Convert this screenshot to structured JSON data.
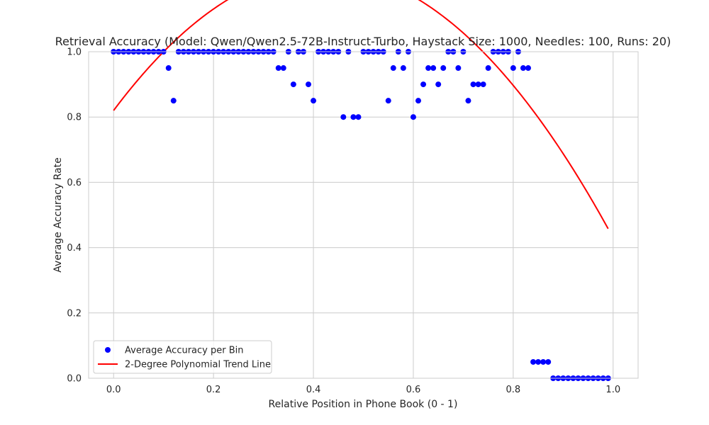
{
  "chart_data": {
    "type": "scatter",
    "title": "Retrieval Accuracy (Model: Qwen/Qwen2.5-72B-Instruct-Turbo, Haystack Size: 1000, Needles: 100, Runs: 20)",
    "xlabel": "Relative Position in Phone Book (0 - 1)",
    "ylabel": "Average Accuracy Rate",
    "xlim": [
      -0.05,
      1.05
    ],
    "ylim": [
      0,
      1
    ],
    "xticks": [
      "0.0",
      "0.2",
      "0.4",
      "0.6",
      "0.8",
      "1.0"
    ],
    "yticks": [
      "0.0",
      "0.2",
      "0.4",
      "0.6",
      "0.8",
      "1.0"
    ],
    "grid": true,
    "legend_position": "lower-left",
    "series": [
      {
        "name": "Average Accuracy per Bin",
        "kind": "scatter",
        "color": "#0000ff",
        "x": [
          0.0,
          0.01,
          0.02,
          0.03,
          0.04,
          0.05,
          0.06,
          0.07,
          0.08,
          0.09,
          0.1,
          0.11,
          0.12,
          0.13,
          0.14,
          0.15,
          0.16,
          0.17,
          0.18,
          0.19,
          0.2,
          0.21,
          0.22,
          0.23,
          0.24,
          0.25,
          0.26,
          0.27,
          0.28,
          0.29,
          0.3,
          0.31,
          0.32,
          0.33,
          0.34,
          0.35,
          0.36,
          0.37,
          0.38,
          0.39,
          0.4,
          0.41,
          0.42,
          0.43,
          0.44,
          0.45,
          0.46,
          0.47,
          0.48,
          0.49,
          0.5,
          0.51,
          0.52,
          0.53,
          0.54,
          0.55,
          0.56,
          0.57,
          0.58,
          0.59,
          0.6,
          0.61,
          0.62,
          0.63,
          0.64,
          0.65,
          0.66,
          0.67,
          0.68,
          0.69,
          0.7,
          0.71,
          0.72,
          0.73,
          0.74,
          0.75,
          0.76,
          0.77,
          0.78,
          0.79,
          0.8,
          0.81,
          0.82,
          0.83,
          0.84,
          0.85,
          0.86,
          0.87,
          0.88,
          0.89,
          0.9,
          0.91,
          0.92,
          0.93,
          0.94,
          0.95,
          0.96,
          0.97,
          0.98,
          0.99
        ],
        "y": [
          1.0,
          1.0,
          1.0,
          1.0,
          1.0,
          1.0,
          1.0,
          1.0,
          1.0,
          1.0,
          1.0,
          0.95,
          0.85,
          1.0,
          1.0,
          1.0,
          1.0,
          1.0,
          1.0,
          1.0,
          1.0,
          1.0,
          1.0,
          1.0,
          1.0,
          1.0,
          1.0,
          1.0,
          1.0,
          1.0,
          1.0,
          1.0,
          1.0,
          0.95,
          0.95,
          1.0,
          0.9,
          1.0,
          1.0,
          0.9,
          0.85,
          1.0,
          1.0,
          1.0,
          1.0,
          1.0,
          0.8,
          1.0,
          0.8,
          0.8,
          1.0,
          1.0,
          1.0,
          1.0,
          1.0,
          0.85,
          0.95,
          1.0,
          0.95,
          1.0,
          0.8,
          0.85,
          0.9,
          0.95,
          0.95,
          0.9,
          0.95,
          1.0,
          1.0,
          0.95,
          1.0,
          0.85,
          0.9,
          0.9,
          0.9,
          0.95,
          1.0,
          1.0,
          1.0,
          1.0,
          0.95,
          1.0,
          0.95,
          0.95,
          0.05,
          0.05,
          0.05,
          0.05,
          0.0,
          0.0,
          0.0,
          0.0,
          0.0,
          0.0,
          0.0,
          0.0,
          0.0,
          0.0,
          0.0,
          0.0
        ]
      },
      {
        "name": "2-Degree Polynomial Trend Line",
        "kind": "line",
        "color": "#ff0000",
        "x_range": [
          0.0,
          0.99
        ],
        "coefficients_quadratic": [
          -2.43,
          2.04,
          0.82
        ]
      }
    ]
  }
}
